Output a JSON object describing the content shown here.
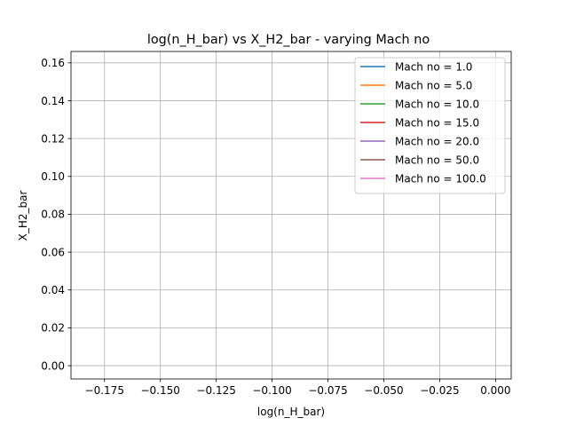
{
  "chart_data": {
    "type": "line",
    "title": "log(n_H_bar) vs X_H2_bar - varying Mach no",
    "xlabel": "log(n_H_bar)",
    "ylabel": "X_H2_bar",
    "xlim": [
      -0.19,
      0.007
    ],
    "ylim": [
      -0.007,
      0.166
    ],
    "xticks": [
      -0.175,
      -0.15,
      -0.125,
      -0.1,
      -0.075,
      -0.05,
      -0.025,
      0.0
    ],
    "xtick_labels": [
      "−0.175",
      "−0.150",
      "−0.125",
      "−0.100",
      "−0.075",
      "−0.050",
      "−0.025",
      "0.000"
    ],
    "yticks": [
      0.0,
      0.02,
      0.04,
      0.06,
      0.08,
      0.1,
      0.12,
      0.14,
      0.16
    ],
    "ytick_labels": [
      "0.00",
      "0.02",
      "0.04",
      "0.06",
      "0.08",
      "0.10",
      "0.12",
      "0.14",
      "0.16"
    ],
    "grid": true,
    "legend_position": "top-right",
    "series": [
      {
        "name": "Mach no = 1.0",
        "color": "#1f77b4",
        "x": [],
        "y": []
      },
      {
        "name": "Mach no = 5.0",
        "color": "#ff7f0e",
        "x": [],
        "y": []
      },
      {
        "name": "Mach no = 10.0",
        "color": "#2ca02c",
        "x": [],
        "y": []
      },
      {
        "name": "Mach no = 15.0",
        "color": "#d62728",
        "x": [],
        "y": []
      },
      {
        "name": "Mach no = 20.0",
        "color": "#9467bd",
        "x": [],
        "y": []
      },
      {
        "name": "Mach no = 50.0",
        "color": "#8c564b",
        "x": [],
        "y": []
      },
      {
        "name": "Mach no = 100.0",
        "color": "#e377c2",
        "x": [],
        "y": []
      }
    ]
  }
}
